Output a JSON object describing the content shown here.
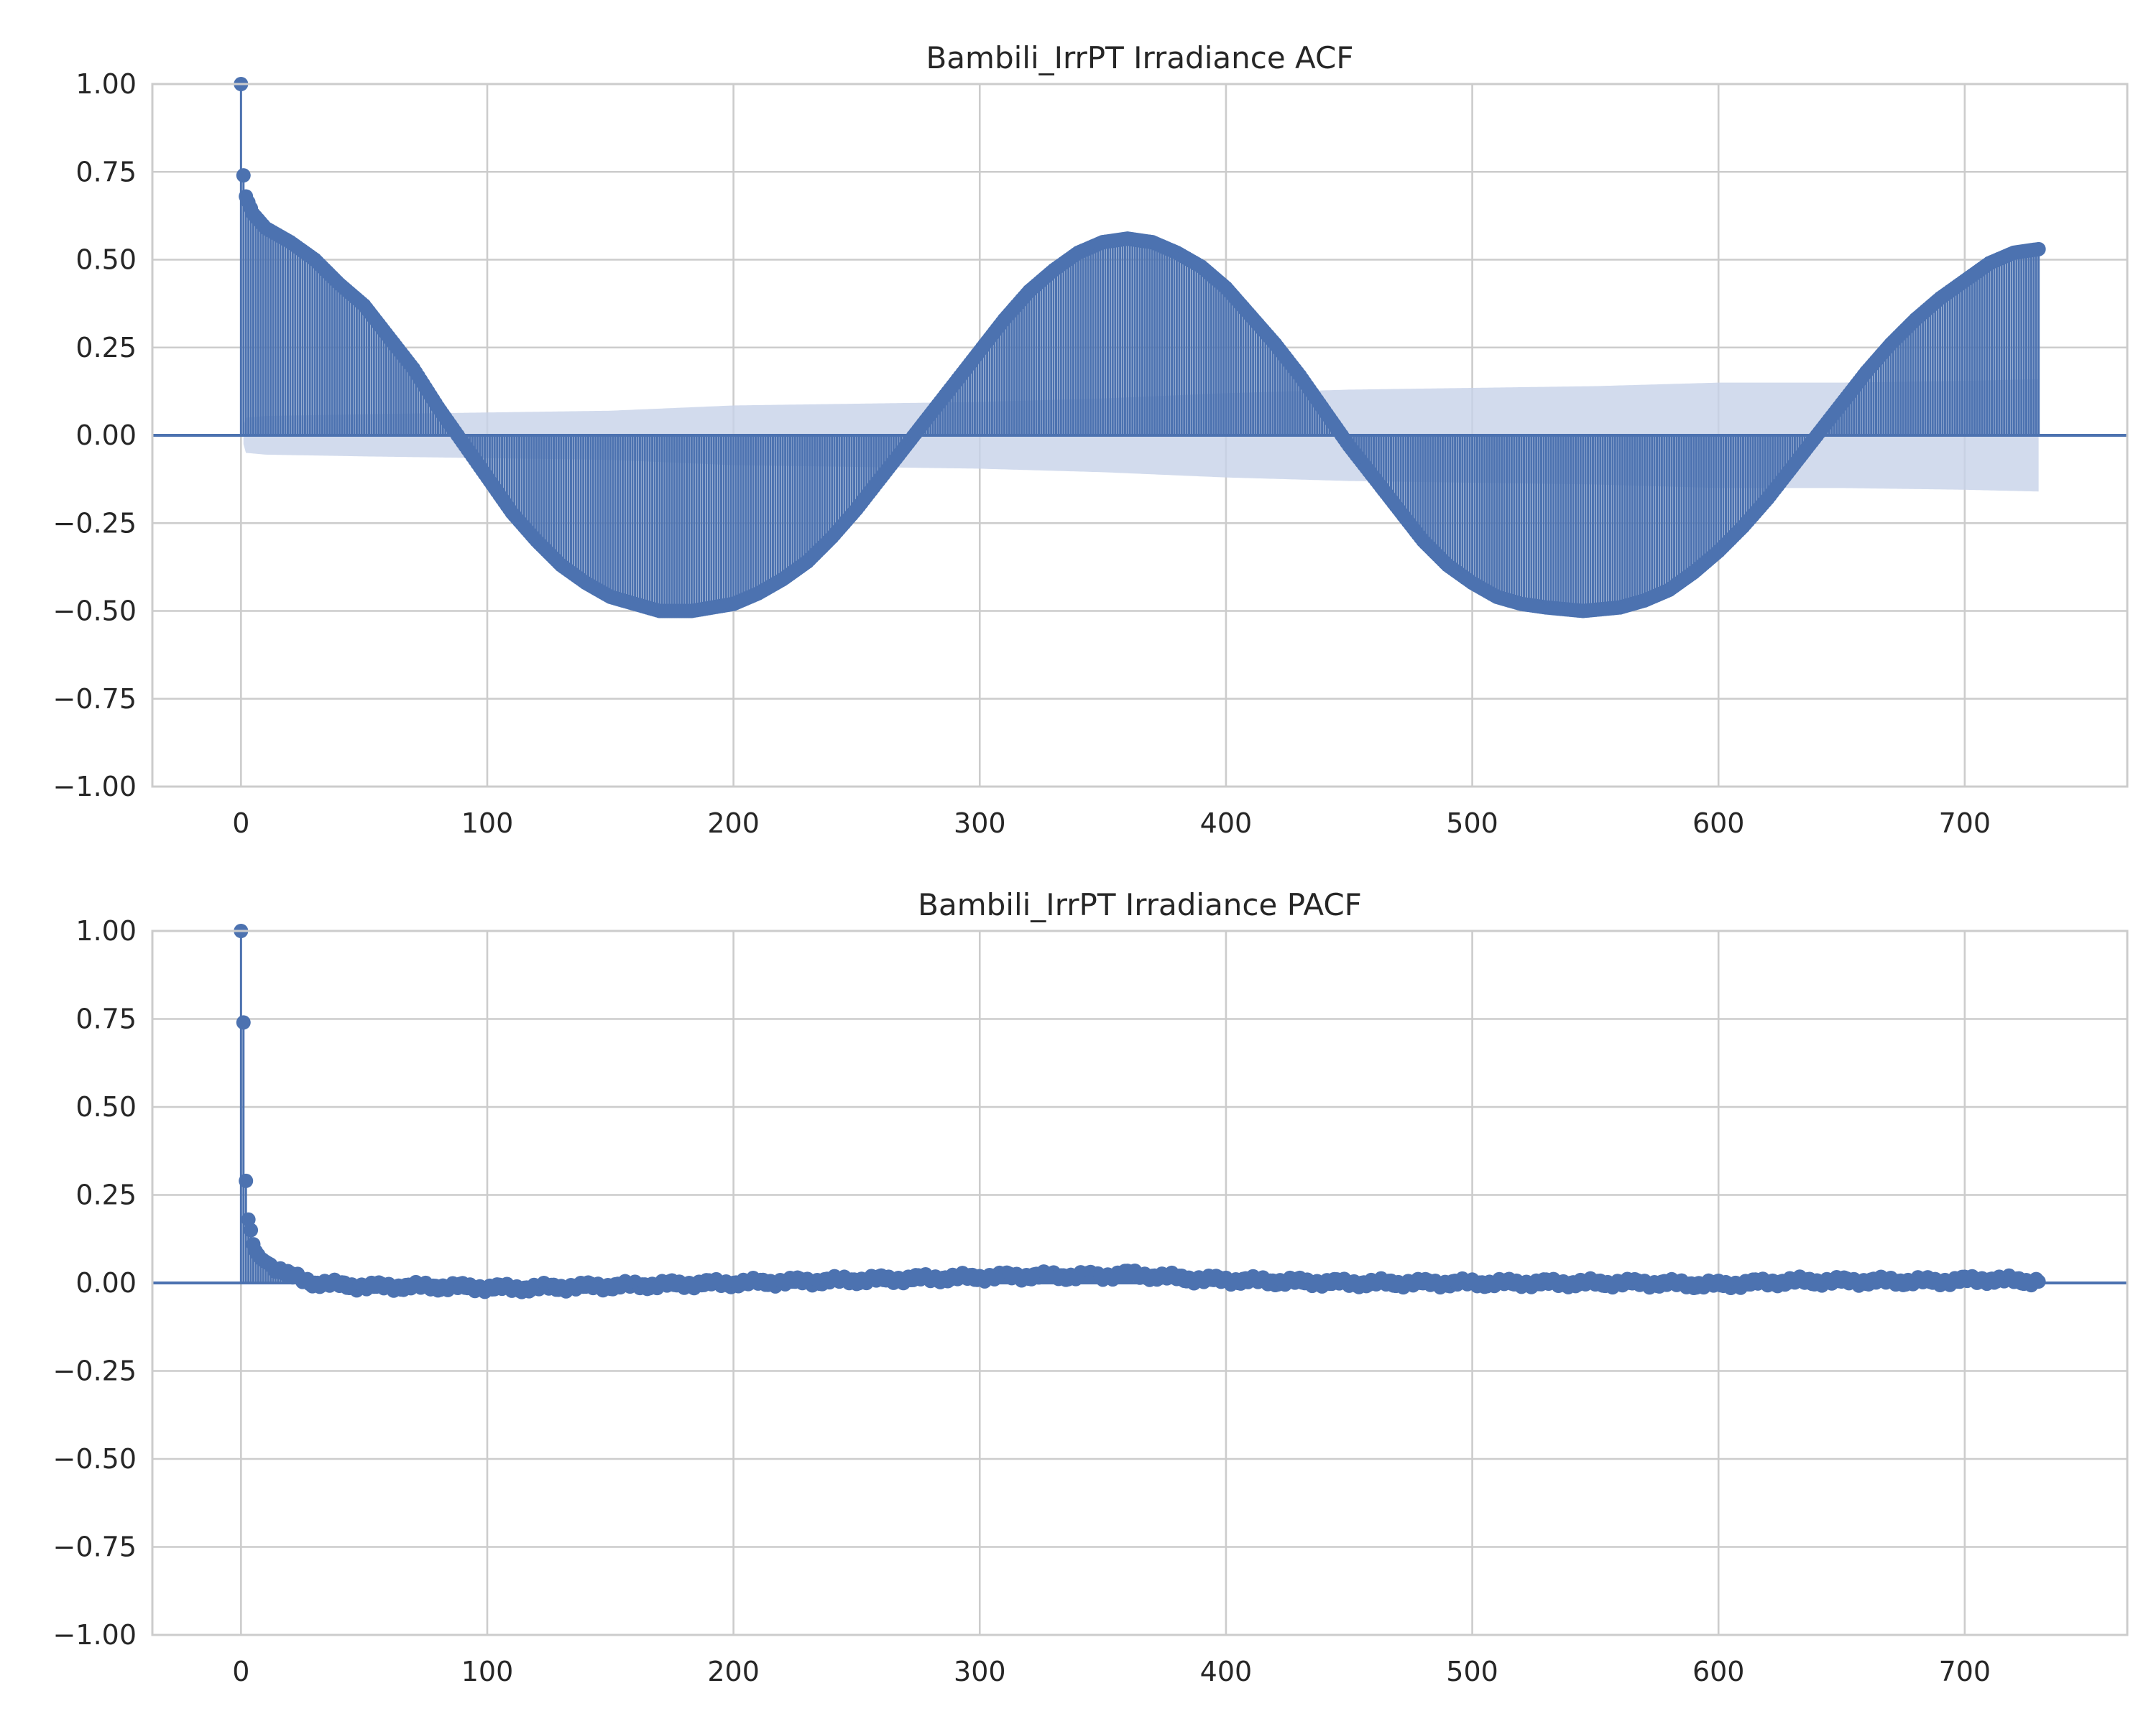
{
  "chart_data": [
    {
      "type": "stem",
      "title": "Bambili_IrrPT Irradiance ACF",
      "xlabel": "",
      "ylabel": "",
      "xlim": [
        -36,
        766
      ],
      "ylim": [
        -1.0,
        1.0
      ],
      "xticks": [
        "0",
        "100",
        "200",
        "300",
        "400",
        "500",
        "600",
        "700"
      ],
      "xtick_values": [
        0,
        100,
        200,
        300,
        400,
        500,
        600,
        700
      ],
      "yticks": [
        "−1.00",
        "−0.75",
        "−0.50",
        "−0.25",
        "0.00",
        "0.25",
        "0.50",
        "0.75",
        "1.00"
      ],
      "ytick_values": [
        -1.0,
        -0.75,
        -0.5,
        -0.25,
        0.0,
        0.25,
        0.5,
        0.75,
        1.0
      ],
      "grid": true,
      "max_lag": 730,
      "series": [
        {
          "kind": "acf",
          "color": "#4c72b0",
          "points": [
            [
              0,
              1.0
            ],
            [
              1,
              0.74
            ],
            [
              2,
              0.68
            ],
            [
              5,
              0.63
            ],
            [
              10,
              0.59
            ],
            [
              20,
              0.55
            ],
            [
              30,
              0.5
            ],
            [
              40,
              0.43
            ],
            [
              50,
              0.37
            ],
            [
              60,
              0.28
            ],
            [
              70,
              0.19
            ],
            [
              80,
              0.08
            ],
            [
              90,
              -0.02
            ],
            [
              100,
              -0.12
            ],
            [
              110,
              -0.22
            ],
            [
              120,
              -0.3
            ],
            [
              130,
              -0.37
            ],
            [
              140,
              -0.42
            ],
            [
              150,
              -0.46
            ],
            [
              160,
              -0.48
            ],
            [
              170,
              -0.5
            ],
            [
              183,
              -0.5
            ],
            [
              200,
              -0.48
            ],
            [
              210,
              -0.45
            ],
            [
              220,
              -0.41
            ],
            [
              230,
              -0.36
            ],
            [
              240,
              -0.29
            ],
            [
              250,
              -0.21
            ],
            [
              260,
              -0.12
            ],
            [
              270,
              -0.03
            ],
            [
              280,
              0.06
            ],
            [
              290,
              0.15
            ],
            [
              300,
              0.24
            ],
            [
              310,
              0.33
            ],
            [
              320,
              0.41
            ],
            [
              330,
              0.47
            ],
            [
              340,
              0.52
            ],
            [
              350,
              0.55
            ],
            [
              360,
              0.56
            ],
            [
              370,
              0.55
            ],
            [
              380,
              0.52
            ],
            [
              390,
              0.48
            ],
            [
              400,
              0.42
            ],
            [
              410,
              0.34
            ],
            [
              420,
              0.26
            ],
            [
              430,
              0.17
            ],
            [
              440,
              0.07
            ],
            [
              450,
              -0.03
            ],
            [
              460,
              -0.12
            ],
            [
              470,
              -0.21
            ],
            [
              480,
              -0.3
            ],
            [
              490,
              -0.37
            ],
            [
              500,
              -0.42
            ],
            [
              510,
              -0.46
            ],
            [
              520,
              -0.48
            ],
            [
              530,
              -0.49
            ],
            [
              545,
              -0.5
            ],
            [
              560,
              -0.49
            ],
            [
              570,
              -0.47
            ],
            [
              580,
              -0.44
            ],
            [
              590,
              -0.39
            ],
            [
              600,
              -0.33
            ],
            [
              610,
              -0.26
            ],
            [
              620,
              -0.18
            ],
            [
              630,
              -0.09
            ],
            [
              640,
              0.0
            ],
            [
              650,
              0.09
            ],
            [
              660,
              0.18
            ],
            [
              670,
              0.26
            ],
            [
              680,
              0.33
            ],
            [
              690,
              0.39
            ],
            [
              700,
              0.44
            ],
            [
              710,
              0.49
            ],
            [
              720,
              0.52
            ],
            [
              730,
              0.53
            ]
          ]
        },
        {
          "kind": "confidence_band",
          "color": "#c7d2e8",
          "points": [
            [
              0,
              0.0
            ],
            [
              2,
              0.05
            ],
            [
              10,
              0.055
            ],
            [
              50,
              0.06
            ],
            [
              100,
              0.065
            ],
            [
              150,
              0.07
            ],
            [
              200,
              0.085
            ],
            [
              250,
              0.09
            ],
            [
              300,
              0.095
            ],
            [
              350,
              0.105
            ],
            [
              400,
              0.12
            ],
            [
              450,
              0.13
            ],
            [
              500,
              0.135
            ],
            [
              550,
              0.14
            ],
            [
              600,
              0.15
            ],
            [
              650,
              0.15
            ],
            [
              700,
              0.155
            ],
            [
              730,
              0.16
            ]
          ]
        }
      ]
    },
    {
      "type": "stem",
      "title": "Bambili_IrrPT Irradiance PACF",
      "xlabel": "",
      "ylabel": "",
      "xlim": [
        -36,
        766
      ],
      "ylim": [
        -1.0,
        1.0
      ],
      "xticks": [
        "0",
        "100",
        "200",
        "300",
        "400",
        "500",
        "600",
        "700"
      ],
      "xtick_values": [
        0,
        100,
        200,
        300,
        400,
        500,
        600,
        700
      ],
      "yticks": [
        "−1.00",
        "−0.75",
        "−0.50",
        "−0.25",
        "0.00",
        "0.25",
        "0.50",
        "0.75",
        "1.00"
      ],
      "ytick_values": [
        -1.0,
        -0.75,
        -0.5,
        -0.25,
        0.0,
        0.25,
        0.5,
        0.75,
        1.0
      ],
      "grid": true,
      "max_lag": 730,
      "series": [
        {
          "kind": "pacf",
          "color": "#4c72b0",
          "points": [
            [
              0,
              1.0
            ],
            [
              1,
              0.74
            ],
            [
              2,
              0.29
            ],
            [
              3,
              0.18
            ],
            [
              4,
              0.15
            ],
            [
              5,
              0.11
            ],
            [
              6,
              0.09
            ],
            [
              8,
              0.07
            ],
            [
              10,
              0.06
            ],
            [
              15,
              0.04
            ],
            [
              20,
              0.02
            ],
            [
              25,
              0.01
            ],
            [
              30,
              0.0
            ],
            [
              50,
              -0.01
            ],
            [
              80,
              -0.01
            ],
            [
              110,
              -0.015
            ],
            [
              140,
              -0.01
            ],
            [
              170,
              -0.005
            ],
            [
              200,
              0.0
            ],
            [
              230,
              0.005
            ],
            [
              260,
              0.01
            ],
            [
              290,
              0.015
            ],
            [
              320,
              0.02
            ],
            [
              350,
              0.02
            ],
            [
              360,
              0.025
            ],
            [
              390,
              0.01
            ],
            [
              420,
              0.005
            ],
            [
              450,
              0.0
            ],
            [
              480,
              0.0
            ],
            [
              510,
              0.0
            ],
            [
              540,
              0.0
            ],
            [
              570,
              0.0
            ],
            [
              600,
              -0.005
            ],
            [
              630,
              0.005
            ],
            [
              660,
              0.005
            ],
            [
              690,
              0.005
            ],
            [
              710,
              0.01
            ],
            [
              730,
              0.005
            ]
          ]
        }
      ]
    }
  ]
}
